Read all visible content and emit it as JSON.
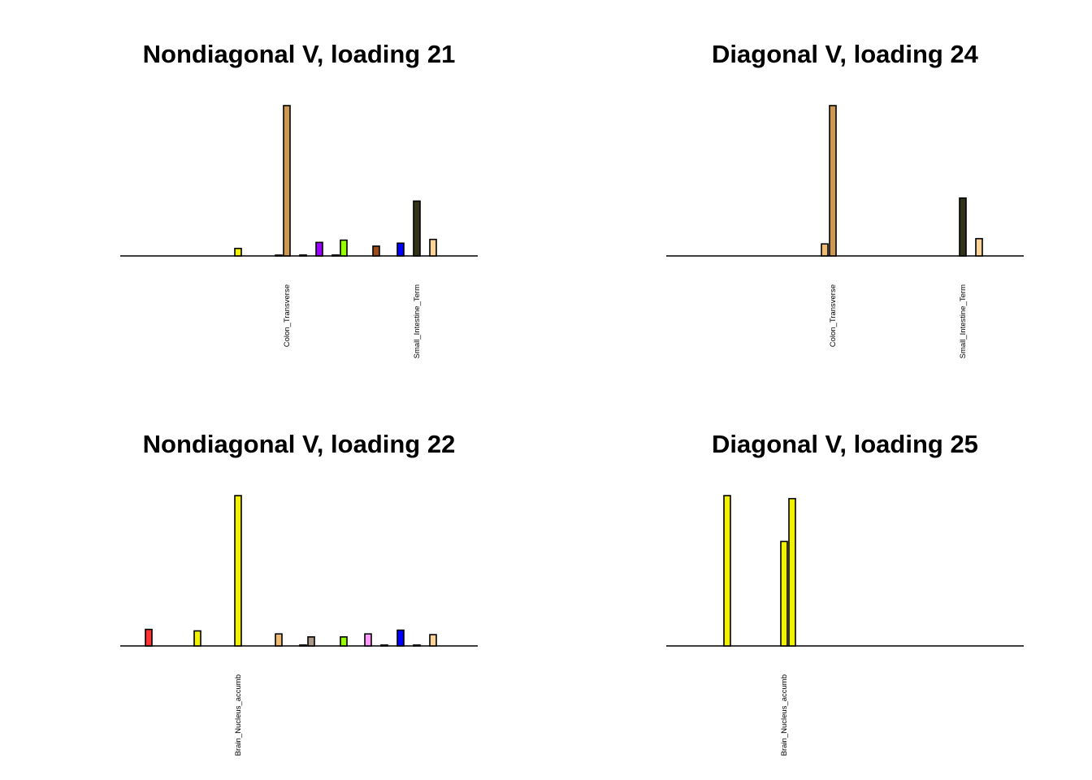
{
  "chart_data": [
    {
      "type": "bar",
      "title": "Nondiagonal V, loading 21",
      "labeled_categories": [
        {
          "index": 20,
          "label": "Colon_Transverse"
        },
        {
          "index": 36,
          "label": "Small_Intestine_Term"
        }
      ],
      "ylim": [
        0,
        1
      ],
      "bars": [
        {
          "index": 14,
          "value": 0.05,
          "color": "#F2F200"
        },
        {
          "index": 19,
          "value": 0.005,
          "color": "#CC9955"
        },
        {
          "index": 20,
          "value": 1.0,
          "color": "#CC9955"
        },
        {
          "index": 22,
          "value": 0.006,
          "color": "#AAAAAA"
        },
        {
          "index": 24,
          "value": 0.09,
          "color": "#9900FF"
        },
        {
          "index": 26,
          "value": 0.006,
          "color": "#AAAAAA"
        },
        {
          "index": 27,
          "value": 0.105,
          "color": "#99FF00"
        },
        {
          "index": 31,
          "value": 0.065,
          "color": "#994D1A"
        },
        {
          "index": 34,
          "value": 0.085,
          "color": "#0000FF"
        },
        {
          "index": 36,
          "value": 0.365,
          "color": "#333318"
        },
        {
          "index": 38,
          "value": 0.11,
          "color": "#FFD399"
        }
      ]
    },
    {
      "type": "bar",
      "title": "Diagonal V, loading 24",
      "labeled_categories": [
        {
          "index": 20,
          "label": "Colon_Transverse"
        },
        {
          "index": 36,
          "label": "Small_Intestine_Term"
        }
      ],
      "ylim": [
        0,
        1
      ],
      "bars": [
        {
          "index": 19,
          "value": 0.08,
          "color": "#EEBB77"
        },
        {
          "index": 20,
          "value": 1.0,
          "color": "#CC9955"
        },
        {
          "index": 36,
          "value": 0.385,
          "color": "#333318"
        },
        {
          "index": 38,
          "value": 0.115,
          "color": "#FFD399"
        }
      ]
    },
    {
      "type": "bar",
      "title": "Nondiagonal V, loading 22",
      "labeled_categories": [
        {
          "index": 14,
          "label": "Brain_Nucleus_accumb"
        }
      ],
      "ylim": [
        0,
        1
      ],
      "bars": [
        {
          "index": 3,
          "value": 0.11,
          "color": "#FF3333"
        },
        {
          "index": 9,
          "value": 0.1,
          "color": "#F2F200"
        },
        {
          "index": 14,
          "value": 1.0,
          "color": "#F2F200"
        },
        {
          "index": 19,
          "value": 0.08,
          "color": "#EEBB77"
        },
        {
          "index": 22,
          "value": 0.006,
          "color": "#AAAAAA"
        },
        {
          "index": 23,
          "value": 0.06,
          "color": "#AA9988"
        },
        {
          "index": 27,
          "value": 0.06,
          "color": "#99FF00"
        },
        {
          "index": 30,
          "value": 0.08,
          "color": "#FF99FF"
        },
        {
          "index": 32,
          "value": 0.006,
          "color": "#AAAAAA"
        },
        {
          "index": 34,
          "value": 0.105,
          "color": "#0000FF"
        },
        {
          "index": 36,
          "value": 0.006,
          "color": "#333318"
        },
        {
          "index": 38,
          "value": 0.075,
          "color": "#FFD399"
        }
      ]
    },
    {
      "type": "bar",
      "title": "Diagonal V, loading 25",
      "labeled_categories": [
        {
          "index": 14,
          "label": "Brain_Nucleus_accumb"
        }
      ],
      "ylim": [
        0,
        1
      ],
      "bars": [
        {
          "index": 7,
          "value": 1.0,
          "color": "#F2F200"
        },
        {
          "index": 14,
          "value": 0.695,
          "color": "#F2F200"
        },
        {
          "index": 15,
          "value": 0.98,
          "color": "#F2F200"
        }
      ]
    }
  ]
}
